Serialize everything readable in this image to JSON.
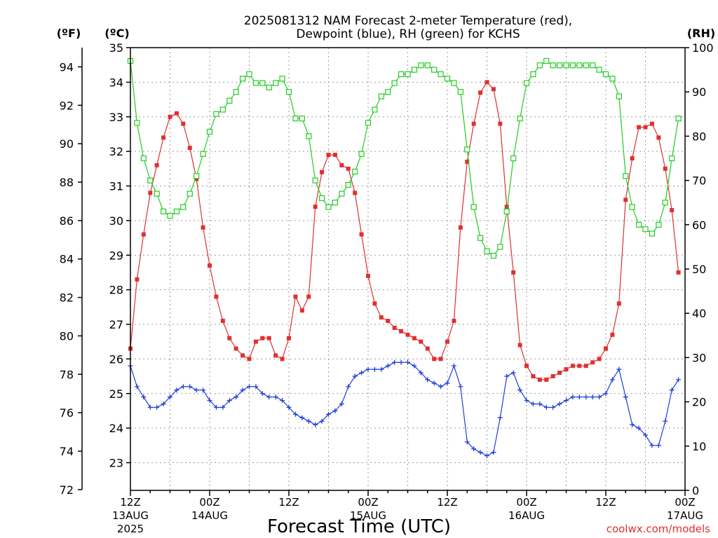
{
  "chart_data": {
    "type": "line",
    "title": "2025081312 NAM Forecast 2-meter Temperature (red),",
    "subtitle": "Dewpoint (blue), RH (green) for KCHS",
    "xlabel": "Forecast Time (UTC)",
    "left_axis_f_label": "(ºF)",
    "left_axis_c_label": "(ºC)",
    "right_axis_label": "(RH)",
    "credit": "coolwx.com/models",
    "x_range_hours": [
      0,
      84
    ],
    "celsius_range": [
      22.2,
      35
    ],
    "rh_range": [
      0,
      100
    ],
    "fahrenheit_ticks": [
      "72",
      "74",
      "76",
      "78",
      "80",
      "82",
      "84",
      "86",
      "88",
      "90",
      "92",
      "94"
    ],
    "celsius_ticks": [
      "23",
      "24",
      "25",
      "26",
      "27",
      "28",
      "29",
      "30",
      "31",
      "32",
      "33",
      "34",
      "35"
    ],
    "rh_ticks": [
      "0",
      "10",
      "20",
      "30",
      "40",
      "50",
      "60",
      "70",
      "80",
      "90",
      "100"
    ],
    "x_ticks": [
      {
        "hour": 0,
        "time": "12Z",
        "date": "13AUG",
        "year": "2025"
      },
      {
        "hour": 12,
        "time": "00Z",
        "date": "14AUG",
        "year": ""
      },
      {
        "hour": 24,
        "time": "12Z",
        "date": "",
        "year": ""
      },
      {
        "hour": 36,
        "time": "00Z",
        "date": "15AUG",
        "year": ""
      },
      {
        "hour": 48,
        "time": "12Z",
        "date": "",
        "year": ""
      },
      {
        "hour": 60,
        "time": "00Z",
        "date": "16AUG",
        "year": ""
      },
      {
        "hour": 72,
        "time": "12Z",
        "date": "",
        "year": ""
      },
      {
        "hour": 84,
        "time": "00Z",
        "date": "17AUG",
        "year": ""
      }
    ],
    "series": [
      {
        "name": "Temperature",
        "axis": "celsius",
        "color": "#e03030",
        "marker": "filled-square",
        "values": [
          26.3,
          28.3,
          29.6,
          30.8,
          31.6,
          32.4,
          33.0,
          33.1,
          32.8,
          32.1,
          31.2,
          29.8,
          28.7,
          27.8,
          27.1,
          26.6,
          26.3,
          26.1,
          26.0,
          26.5,
          26.6,
          26.6,
          26.1,
          26.0,
          26.6,
          27.8,
          27.4,
          27.8,
          30.4,
          31.4,
          31.9,
          31.9,
          31.6,
          31.5,
          30.8,
          29.6,
          28.4,
          27.6,
          27.2,
          27.1,
          26.9,
          26.8,
          26.7,
          26.6,
          26.5,
          26.3,
          26.0,
          26.0,
          26.5,
          27.1,
          29.8,
          31.7,
          32.8,
          33.7,
          34.0,
          33.8,
          32.8,
          30.4,
          28.5,
          26.4,
          25.8,
          25.5,
          25.4,
          25.4,
          25.5,
          25.6,
          25.7,
          25.8,
          25.8,
          25.8,
          25.9,
          26.0,
          26.3,
          26.7,
          27.6,
          30.6,
          31.8,
          32.7,
          32.7,
          32.8,
          32.4,
          31.5,
          30.3,
          28.5
        ]
      },
      {
        "name": "Dewpoint",
        "axis": "celsius",
        "color": "#1f3fd8",
        "marker": "plus",
        "values": [
          25.8,
          25.2,
          24.9,
          24.6,
          24.6,
          24.7,
          24.9,
          25.1,
          25.2,
          25.2,
          25.1,
          25.1,
          24.8,
          24.6,
          24.6,
          24.8,
          24.9,
          25.1,
          25.2,
          25.2,
          25.0,
          24.9,
          24.9,
          24.8,
          24.6,
          24.4,
          24.3,
          24.2,
          24.1,
          24.2,
          24.4,
          24.5,
          24.7,
          25.2,
          25.5,
          25.6,
          25.7,
          25.7,
          25.7,
          25.8,
          25.9,
          25.9,
          25.9,
          25.8,
          25.6,
          25.4,
          25.3,
          25.2,
          25.3,
          25.8,
          25.2,
          23.6,
          23.4,
          23.3,
          23.2,
          23.3,
          24.3,
          25.5,
          25.6,
          25.1,
          24.8,
          24.7,
          24.7,
          24.6,
          24.6,
          24.7,
          24.8,
          24.9,
          24.9,
          24.9,
          24.9,
          24.9,
          25.0,
          25.4,
          25.7,
          24.9,
          24.1,
          24.0,
          23.8,
          23.5,
          23.5,
          24.2,
          25.1,
          25.4
        ]
      },
      {
        "name": "RH",
        "axis": "rh",
        "color": "#22cc22",
        "marker": "open-square",
        "values": [
          97,
          83,
          75,
          70,
          67,
          63,
          62,
          63,
          64,
          67,
          71,
          76,
          81,
          85,
          86,
          88,
          90,
          93,
          94,
          92,
          92,
          91,
          92,
          93,
          90,
          84,
          84,
          80,
          70,
          66,
          64,
          65,
          67,
          69,
          72,
          76,
          83,
          86,
          89,
          90,
          92,
          94,
          94,
          95,
          96,
          96,
          95,
          94,
          93,
          92,
          90,
          77,
          64,
          57,
          54,
          53,
          55,
          63,
          75,
          84,
          92,
          94,
          96,
          97,
          96,
          96,
          96,
          96,
          96,
          96,
          96,
          95,
          94,
          93,
          89,
          71,
          64,
          60,
          59,
          58,
          60,
          65,
          75,
          84
        ]
      }
    ]
  }
}
